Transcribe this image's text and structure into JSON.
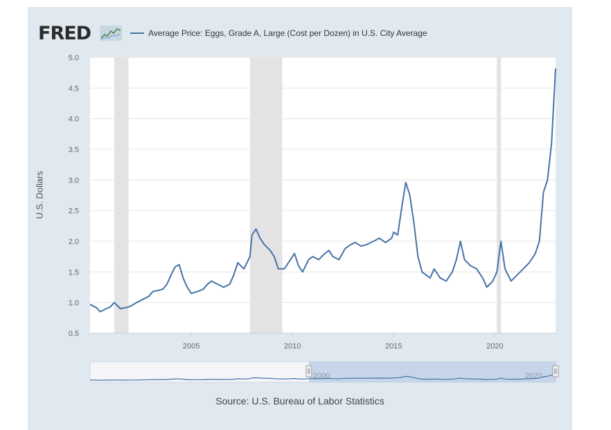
{
  "header": {
    "logo_text": "FRED",
    "logo_mark": "fred-sparkline-icon",
    "legend_label": "Average Price: Eggs, Grade A, Large (Cost per Dozen) in U.S. City Average"
  },
  "source_text": "Source: U.S. Bureau of Labor Statistics",
  "colors": {
    "series": "#4572a7",
    "panel": "#e1e9f0",
    "recession": "#e3e3e3",
    "navigator_fill": "#b8c9e6"
  },
  "chart_data": {
    "type": "line",
    "title": "",
    "xlabel": "",
    "ylabel": "U.S. Dollars",
    "ylim": [
      0.5,
      5.0
    ],
    "y_ticks": [
      "0.5",
      "1.0",
      "1.5",
      "2.0",
      "2.5",
      "3.0",
      "3.5",
      "4.0",
      "4.5",
      "5.0"
    ],
    "xlim": [
      2000.0,
      2023.0
    ],
    "x_ticks": [
      "2005",
      "2010",
      "2015",
      "2020"
    ],
    "grid": true,
    "legend": "top",
    "recessions": [
      [
        2001.2,
        2001.9
      ],
      [
        2007.9,
        2009.5
      ],
      [
        2020.1,
        2020.3
      ]
    ],
    "navigator_labels": [
      "2000",
      "2020"
    ],
    "series": [
      {
        "name": "Average Price: Eggs, Grade A, Large (Cost per Dozen) in U.S. City Average",
        "points": [
          [
            2000.0,
            0.97
          ],
          [
            2000.3,
            0.92
          ],
          [
            2000.5,
            0.85
          ],
          [
            2000.8,
            0.9
          ],
          [
            2001.0,
            0.93
          ],
          [
            2001.2,
            1.0
          ],
          [
            2001.5,
            0.9
          ],
          [
            2001.8,
            0.92
          ],
          [
            2002.0,
            0.94
          ],
          [
            2002.3,
            1.0
          ],
          [
            2002.6,
            1.05
          ],
          [
            2002.9,
            1.1
          ],
          [
            2003.1,
            1.18
          ],
          [
            2003.4,
            1.2
          ],
          [
            2003.6,
            1.22
          ],
          [
            2003.8,
            1.3
          ],
          [
            2004.0,
            1.45
          ],
          [
            2004.2,
            1.58
          ],
          [
            2004.4,
            1.62
          ],
          [
            2004.6,
            1.4
          ],
          [
            2004.8,
            1.25
          ],
          [
            2005.0,
            1.15
          ],
          [
            2005.3,
            1.18
          ],
          [
            2005.6,
            1.22
          ],
          [
            2005.8,
            1.3
          ],
          [
            2006.0,
            1.35
          ],
          [
            2006.3,
            1.3
          ],
          [
            2006.6,
            1.25
          ],
          [
            2006.9,
            1.3
          ],
          [
            2007.1,
            1.45
          ],
          [
            2007.3,
            1.65
          ],
          [
            2007.6,
            1.55
          ],
          [
            2007.9,
            1.75
          ],
          [
            2008.0,
            2.1
          ],
          [
            2008.2,
            2.2
          ],
          [
            2008.4,
            2.05
          ],
          [
            2008.6,
            1.95
          ],
          [
            2008.9,
            1.85
          ],
          [
            2009.1,
            1.75
          ],
          [
            2009.3,
            1.55
          ],
          [
            2009.6,
            1.55
          ],
          [
            2009.9,
            1.7
          ],
          [
            2010.1,
            1.8
          ],
          [
            2010.3,
            1.6
          ],
          [
            2010.5,
            1.5
          ],
          [
            2010.8,
            1.7
          ],
          [
            2011.0,
            1.75
          ],
          [
            2011.3,
            1.7
          ],
          [
            2011.6,
            1.8
          ],
          [
            2011.8,
            1.85
          ],
          [
            2012.0,
            1.75
          ],
          [
            2012.3,
            1.7
          ],
          [
            2012.6,
            1.88
          ],
          [
            2012.9,
            1.95
          ],
          [
            2013.1,
            1.98
          ],
          [
            2013.4,
            1.92
          ],
          [
            2013.7,
            1.95
          ],
          [
            2014.0,
            2.0
          ],
          [
            2014.3,
            2.05
          ],
          [
            2014.6,
            1.98
          ],
          [
            2014.9,
            2.05
          ],
          [
            2015.0,
            2.15
          ],
          [
            2015.2,
            2.1
          ],
          [
            2015.4,
            2.55
          ],
          [
            2015.6,
            2.96
          ],
          [
            2015.8,
            2.75
          ],
          [
            2016.0,
            2.3
          ],
          [
            2016.2,
            1.75
          ],
          [
            2016.4,
            1.5
          ],
          [
            2016.6,
            1.45
          ],
          [
            2016.8,
            1.4
          ],
          [
            2017.0,
            1.55
          ],
          [
            2017.3,
            1.4
          ],
          [
            2017.6,
            1.35
          ],
          [
            2017.9,
            1.5
          ],
          [
            2018.1,
            1.7
          ],
          [
            2018.3,
            2.0
          ],
          [
            2018.5,
            1.7
          ],
          [
            2018.8,
            1.6
          ],
          [
            2019.1,
            1.55
          ],
          [
            2019.4,
            1.4
          ],
          [
            2019.6,
            1.25
          ],
          [
            2019.9,
            1.35
          ],
          [
            2020.1,
            1.5
          ],
          [
            2020.3,
            2.0
          ],
          [
            2020.5,
            1.55
          ],
          [
            2020.8,
            1.35
          ],
          [
            2021.1,
            1.45
          ],
          [
            2021.4,
            1.55
          ],
          [
            2021.7,
            1.65
          ],
          [
            2022.0,
            1.8
          ],
          [
            2022.2,
            2.0
          ],
          [
            2022.4,
            2.8
          ],
          [
            2022.6,
            3.0
          ],
          [
            2022.8,
            3.6
          ],
          [
            2023.0,
            4.82
          ]
        ]
      }
    ]
  }
}
